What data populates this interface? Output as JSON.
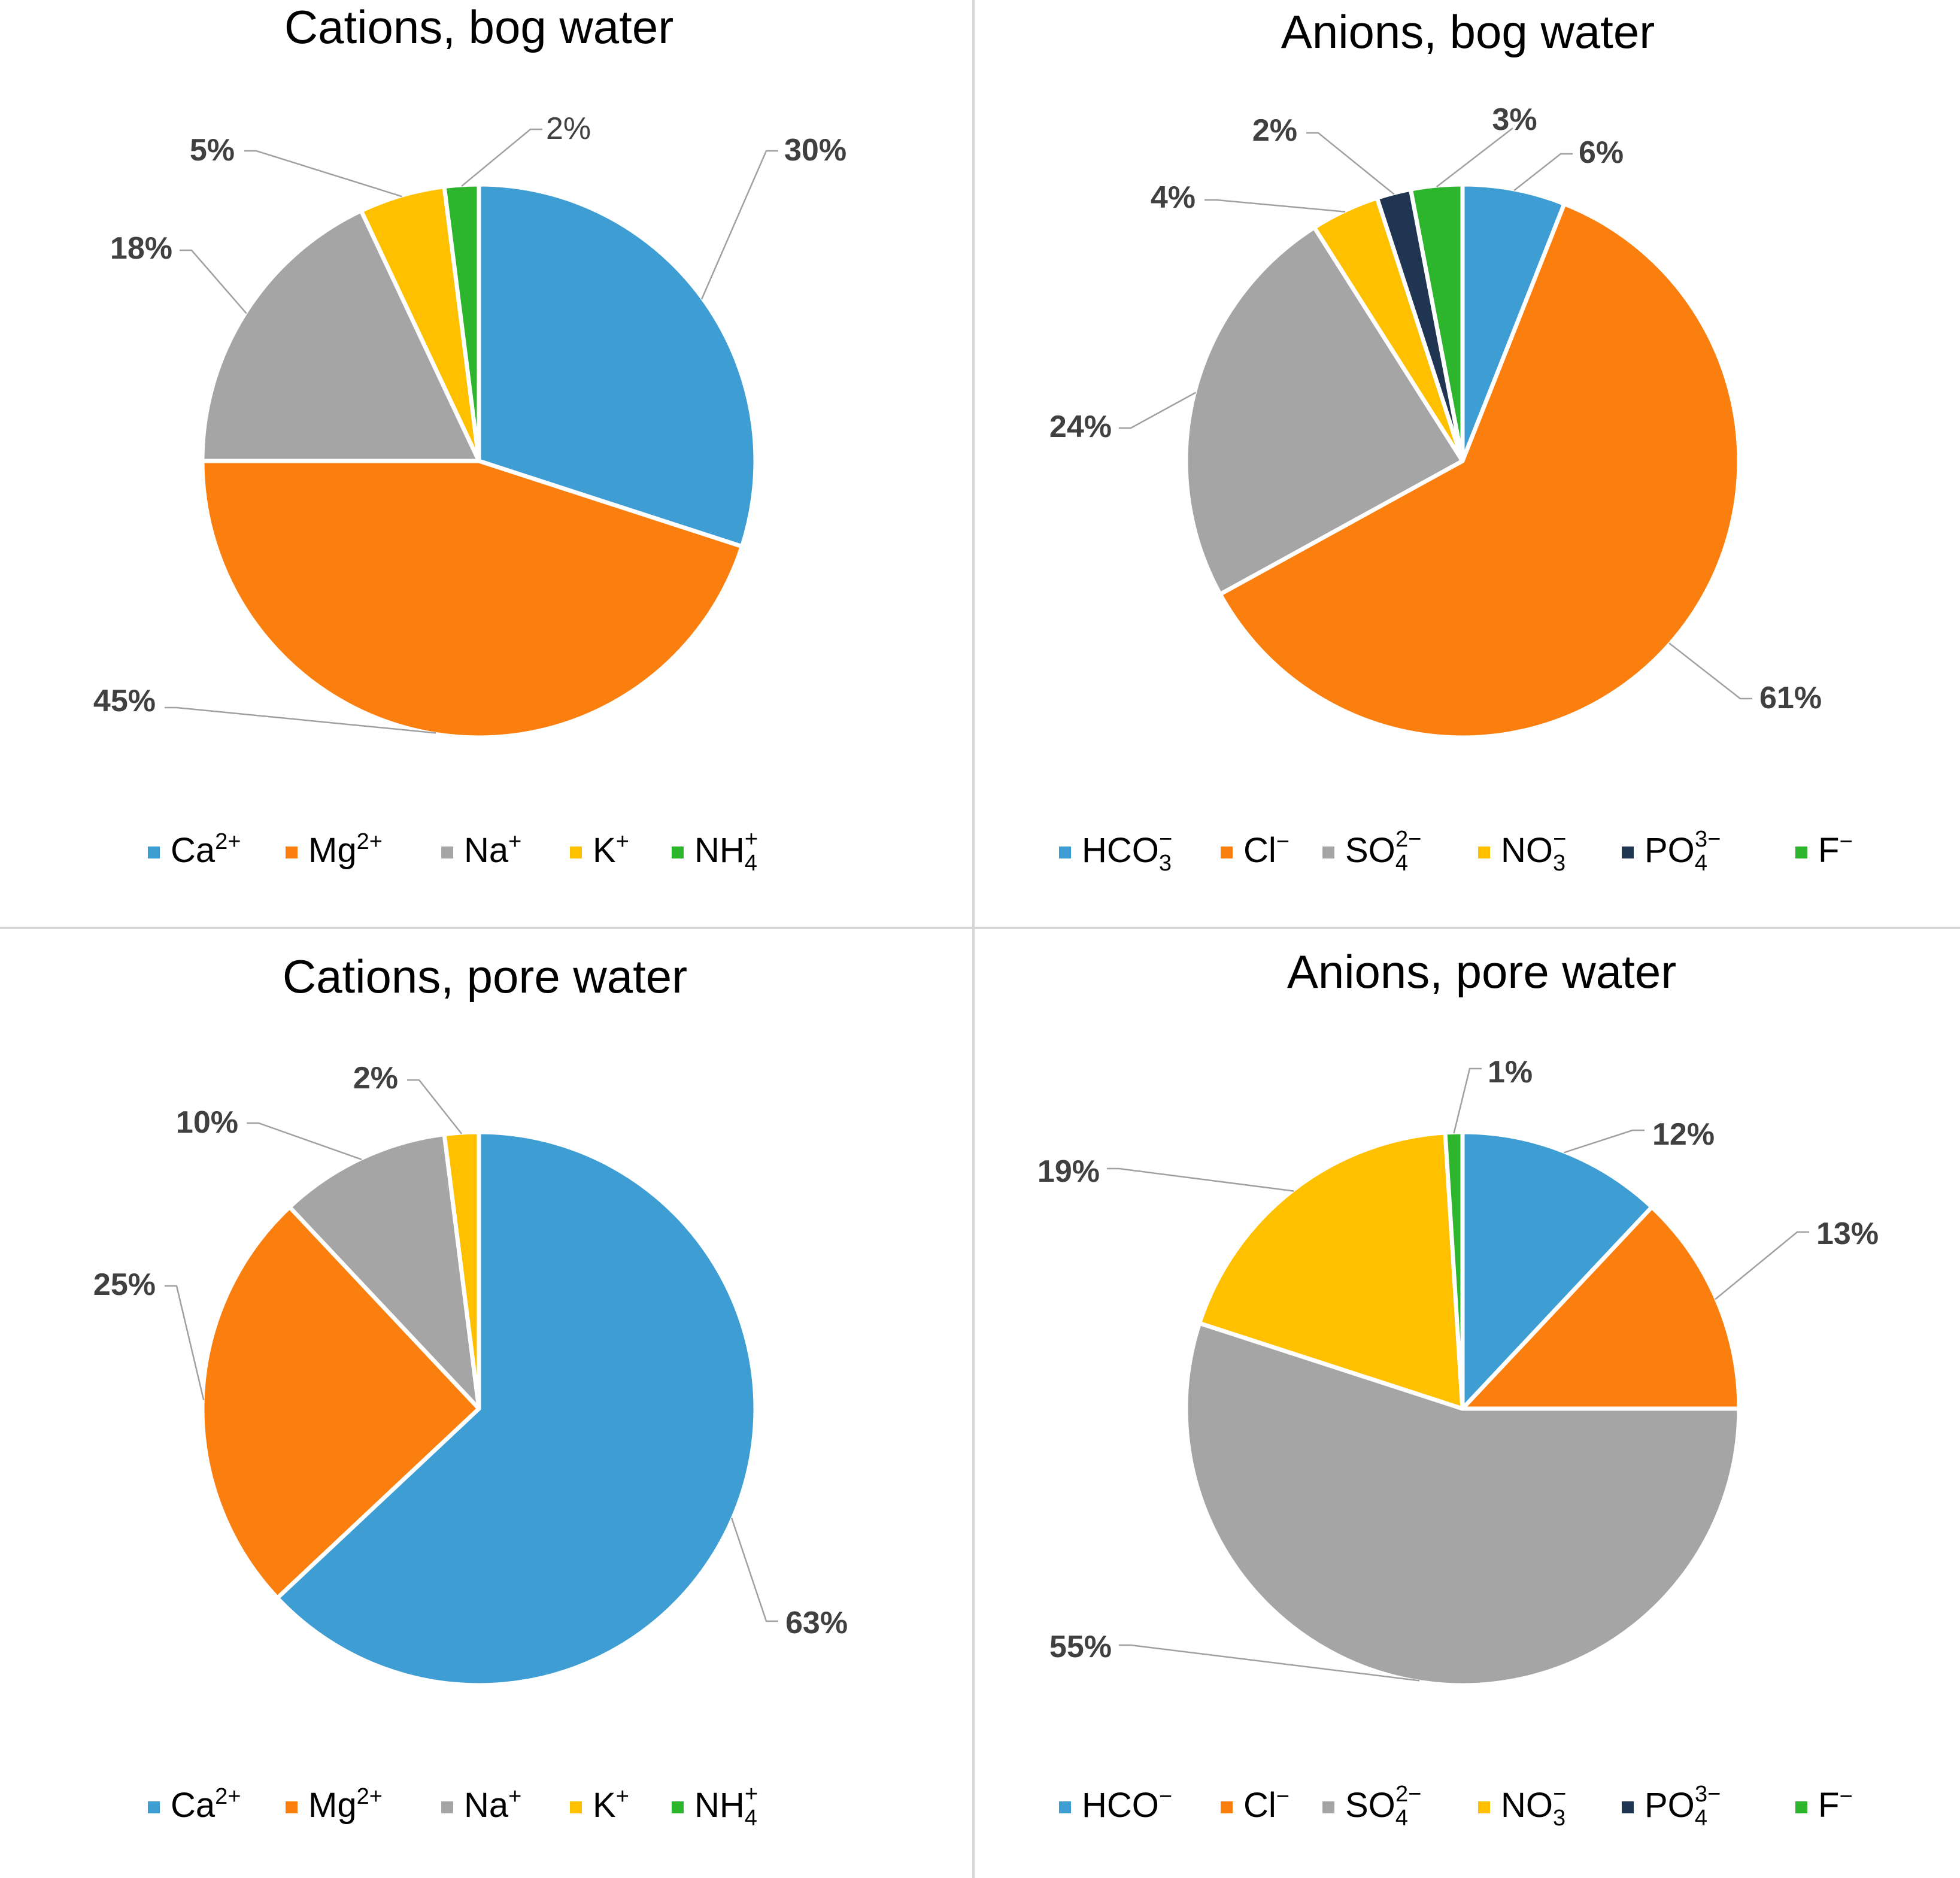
{
  "chart_data": [
    {
      "type": "pie",
      "title": "Cations, bog water",
      "labels": [
        {
          "base": "Ca",
          "sup": "2+",
          "sub": ""
        },
        {
          "base": "Mg",
          "sup": "2+",
          "sub": ""
        },
        {
          "base": "Na",
          "sup": "+",
          "sub": ""
        },
        {
          "base": "K",
          "sup": "+",
          "sub": ""
        },
        {
          "base": "NH",
          "sup": "+",
          "sub": "4"
        }
      ],
      "values": [
        30,
        45,
        18,
        5,
        2
      ],
      "data_labels": [
        "30%",
        "45%",
        "18%",
        "5%",
        "2%"
      ],
      "colors": [
        "#3e9ed4",
        "#fb7f0f",
        "#a5a5a5",
        "#ffc000",
        "#2db52d"
      ],
      "legend_position": "bottom"
    },
    {
      "type": "pie",
      "title": "Anions, bog water",
      "labels": [
        {
          "base": "HCO",
          "sup": "−",
          "sub": "3"
        },
        {
          "base": "Cl",
          "sup": "−",
          "sub": ""
        },
        {
          "base": "SO",
          "sup": "2−",
          "sub": "4"
        },
        {
          "base": "NO",
          "sup": "−",
          "sub": "3"
        },
        {
          "base": "PO",
          "sup": "3−",
          "sub": "4"
        },
        {
          "base": "F",
          "sup": "−",
          "sub": ""
        }
      ],
      "values": [
        6,
        61,
        24,
        4,
        2,
        3
      ],
      "data_labels": [
        "6%",
        "61%",
        "24%",
        "4%",
        "2%",
        "3%"
      ],
      "colors": [
        "#3e9ed4",
        "#fb7f0f",
        "#a5a5a5",
        "#ffc000",
        "#1f3551",
        "#2db52d"
      ],
      "legend_position": "bottom"
    },
    {
      "type": "pie",
      "title": "Cations, pore water",
      "labels": [
        {
          "base": "Ca",
          "sup": "2+",
          "sub": ""
        },
        {
          "base": "Mg",
          "sup": "2+",
          "sub": ""
        },
        {
          "base": "Na",
          "sup": "+",
          "sub": ""
        },
        {
          "base": "K",
          "sup": "+",
          "sub": ""
        },
        {
          "base": "NH",
          "sup": "+",
          "sub": "4"
        }
      ],
      "values": [
        63,
        25,
        10,
        2,
        0
      ],
      "data_labels": [
        "63%",
        "25%",
        "10%",
        "2%",
        ""
      ],
      "colors": [
        "#3e9ed4",
        "#fb7f0f",
        "#a5a5a5",
        "#ffc000",
        "#2db52d"
      ],
      "legend_position": "bottom"
    },
    {
      "type": "pie",
      "title": "Anions, pore water",
      "labels": [
        {
          "base": "HCO",
          "sup": "−",
          "sub": ""
        },
        {
          "base": "Cl",
          "sup": "−",
          "sub": ""
        },
        {
          "base": "SO",
          "sup": "2−",
          "sub": "4"
        },
        {
          "base": "NO",
          "sup": "−",
          "sub": "3"
        },
        {
          "base": "PO",
          "sup": "3−",
          "sub": "4"
        },
        {
          "base": "F",
          "sup": "−",
          "sub": ""
        }
      ],
      "values": [
        12,
        13,
        55,
        19,
        0,
        1
      ],
      "data_labels": [
        "12%",
        "13%",
        "55%",
        "19%",
        "",
        "1%"
      ],
      "colors": [
        "#3e9ed4",
        "#fb7f0f",
        "#a5a5a5",
        "#ffc000",
        "#1f3551",
        "#2db52d"
      ],
      "legend_position": "bottom"
    }
  ]
}
